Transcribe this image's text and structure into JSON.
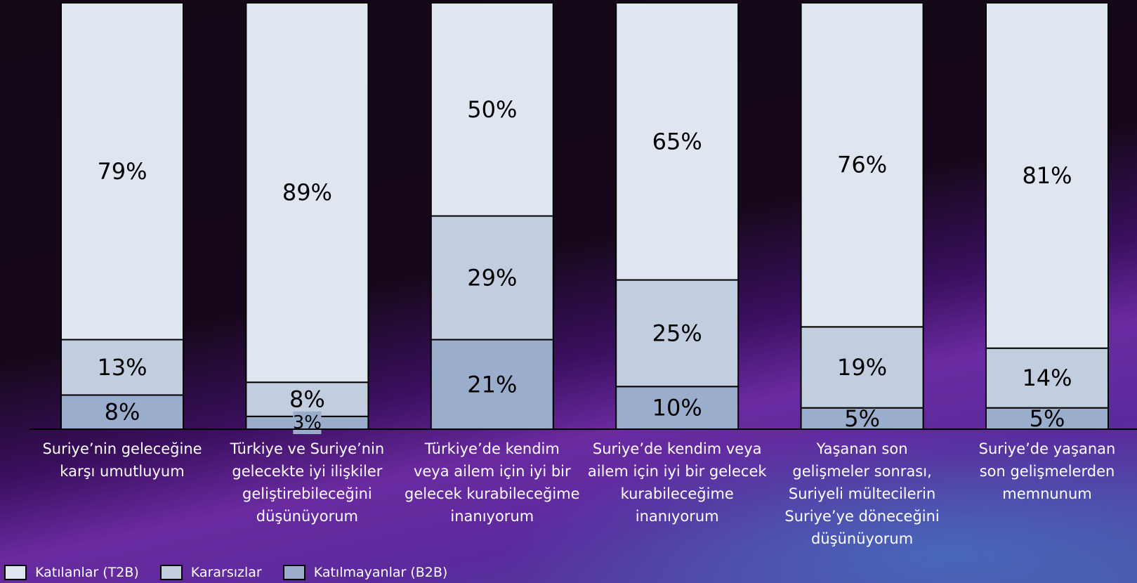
{
  "chart_data": {
    "type": "bar",
    "stacked": true,
    "stack_mode": "percent",
    "title": "",
    "xlabel": "",
    "ylabel": "",
    "ylim": [
      0,
      100
    ],
    "grid": false,
    "legend_position": "bottom-left",
    "categories": [
      [
        "Suriye’nin geleceğine",
        "karşı umutluyum"
      ],
      [
        "Türkiye ve Suriye’nin",
        "gelecekte iyi ilişkiler",
        "geliştirebileceğini",
        "düşünüyorum"
      ],
      [
        "Türkiye’de kendim",
        "veya ailem için iyi bir",
        "gelecek kurabileceğime",
        "inanıyorum"
      ],
      [
        "Suriye’de kendim veya",
        "ailem için iyi bir gelecek",
        "kurabileceğime",
        "inanıyorum"
      ],
      [
        "Yaşanan son",
        "gelişmeler sonrası,",
        "Suriyeli mültecilerin",
        "Suriye’ye döneceğini",
        "düşünüyorum"
      ],
      [
        "Suriye’de yaşanan",
        "son gelişmelerden",
        "memnunum"
      ]
    ],
    "series": [
      {
        "name": "Katılmayanlar (B2B)",
        "color": "#9badcc",
        "values": [
          8,
          3,
          21,
          10,
          5,
          5
        ],
        "labels": [
          "8%",
          "3%",
          "21%",
          "10%",
          "5%",
          "5%"
        ]
      },
      {
        "name": "Kararsızlar",
        "color": "#c2cddf",
        "values": [
          13,
          8,
          29,
          25,
          19,
          14
        ],
        "labels": [
          "13%",
          "8%",
          "29%",
          "25%",
          "19%",
          "14%"
        ]
      },
      {
        "name": "Katılanlar (T2B)",
        "color": "#e0e6f0",
        "values": [
          79,
          89,
          50,
          65,
          76,
          81
        ],
        "labels": [
          "79%",
          "89%",
          "50%",
          "65%",
          "76%",
          "81%"
        ]
      }
    ],
    "legend_order": [
      2,
      1,
      0
    ]
  }
}
